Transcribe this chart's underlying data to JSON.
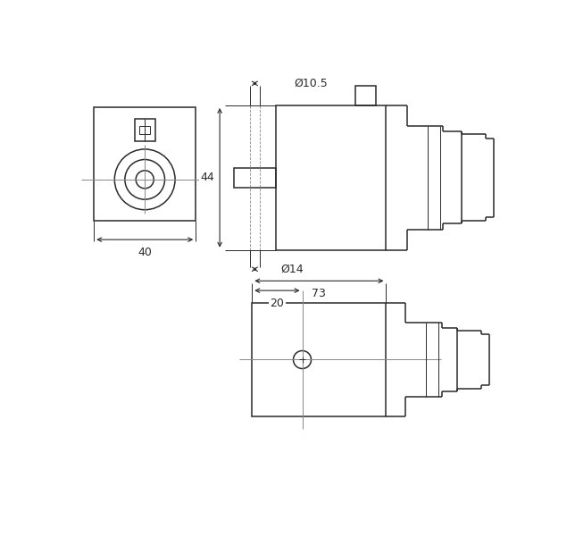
{
  "bg_color": "#ffffff",
  "line_color": "#2a2a2a",
  "line_width": 1.1,
  "thin_line": 0.7,
  "dash_line": 0.6,
  "font_size": 9,
  "dimensions": {
    "dim_40": "40",
    "dim_44": "44",
    "dim_10_5": "Ø10.5",
    "dim_14": "Ø14",
    "dim_73": "73",
    "dim_20": "20"
  }
}
